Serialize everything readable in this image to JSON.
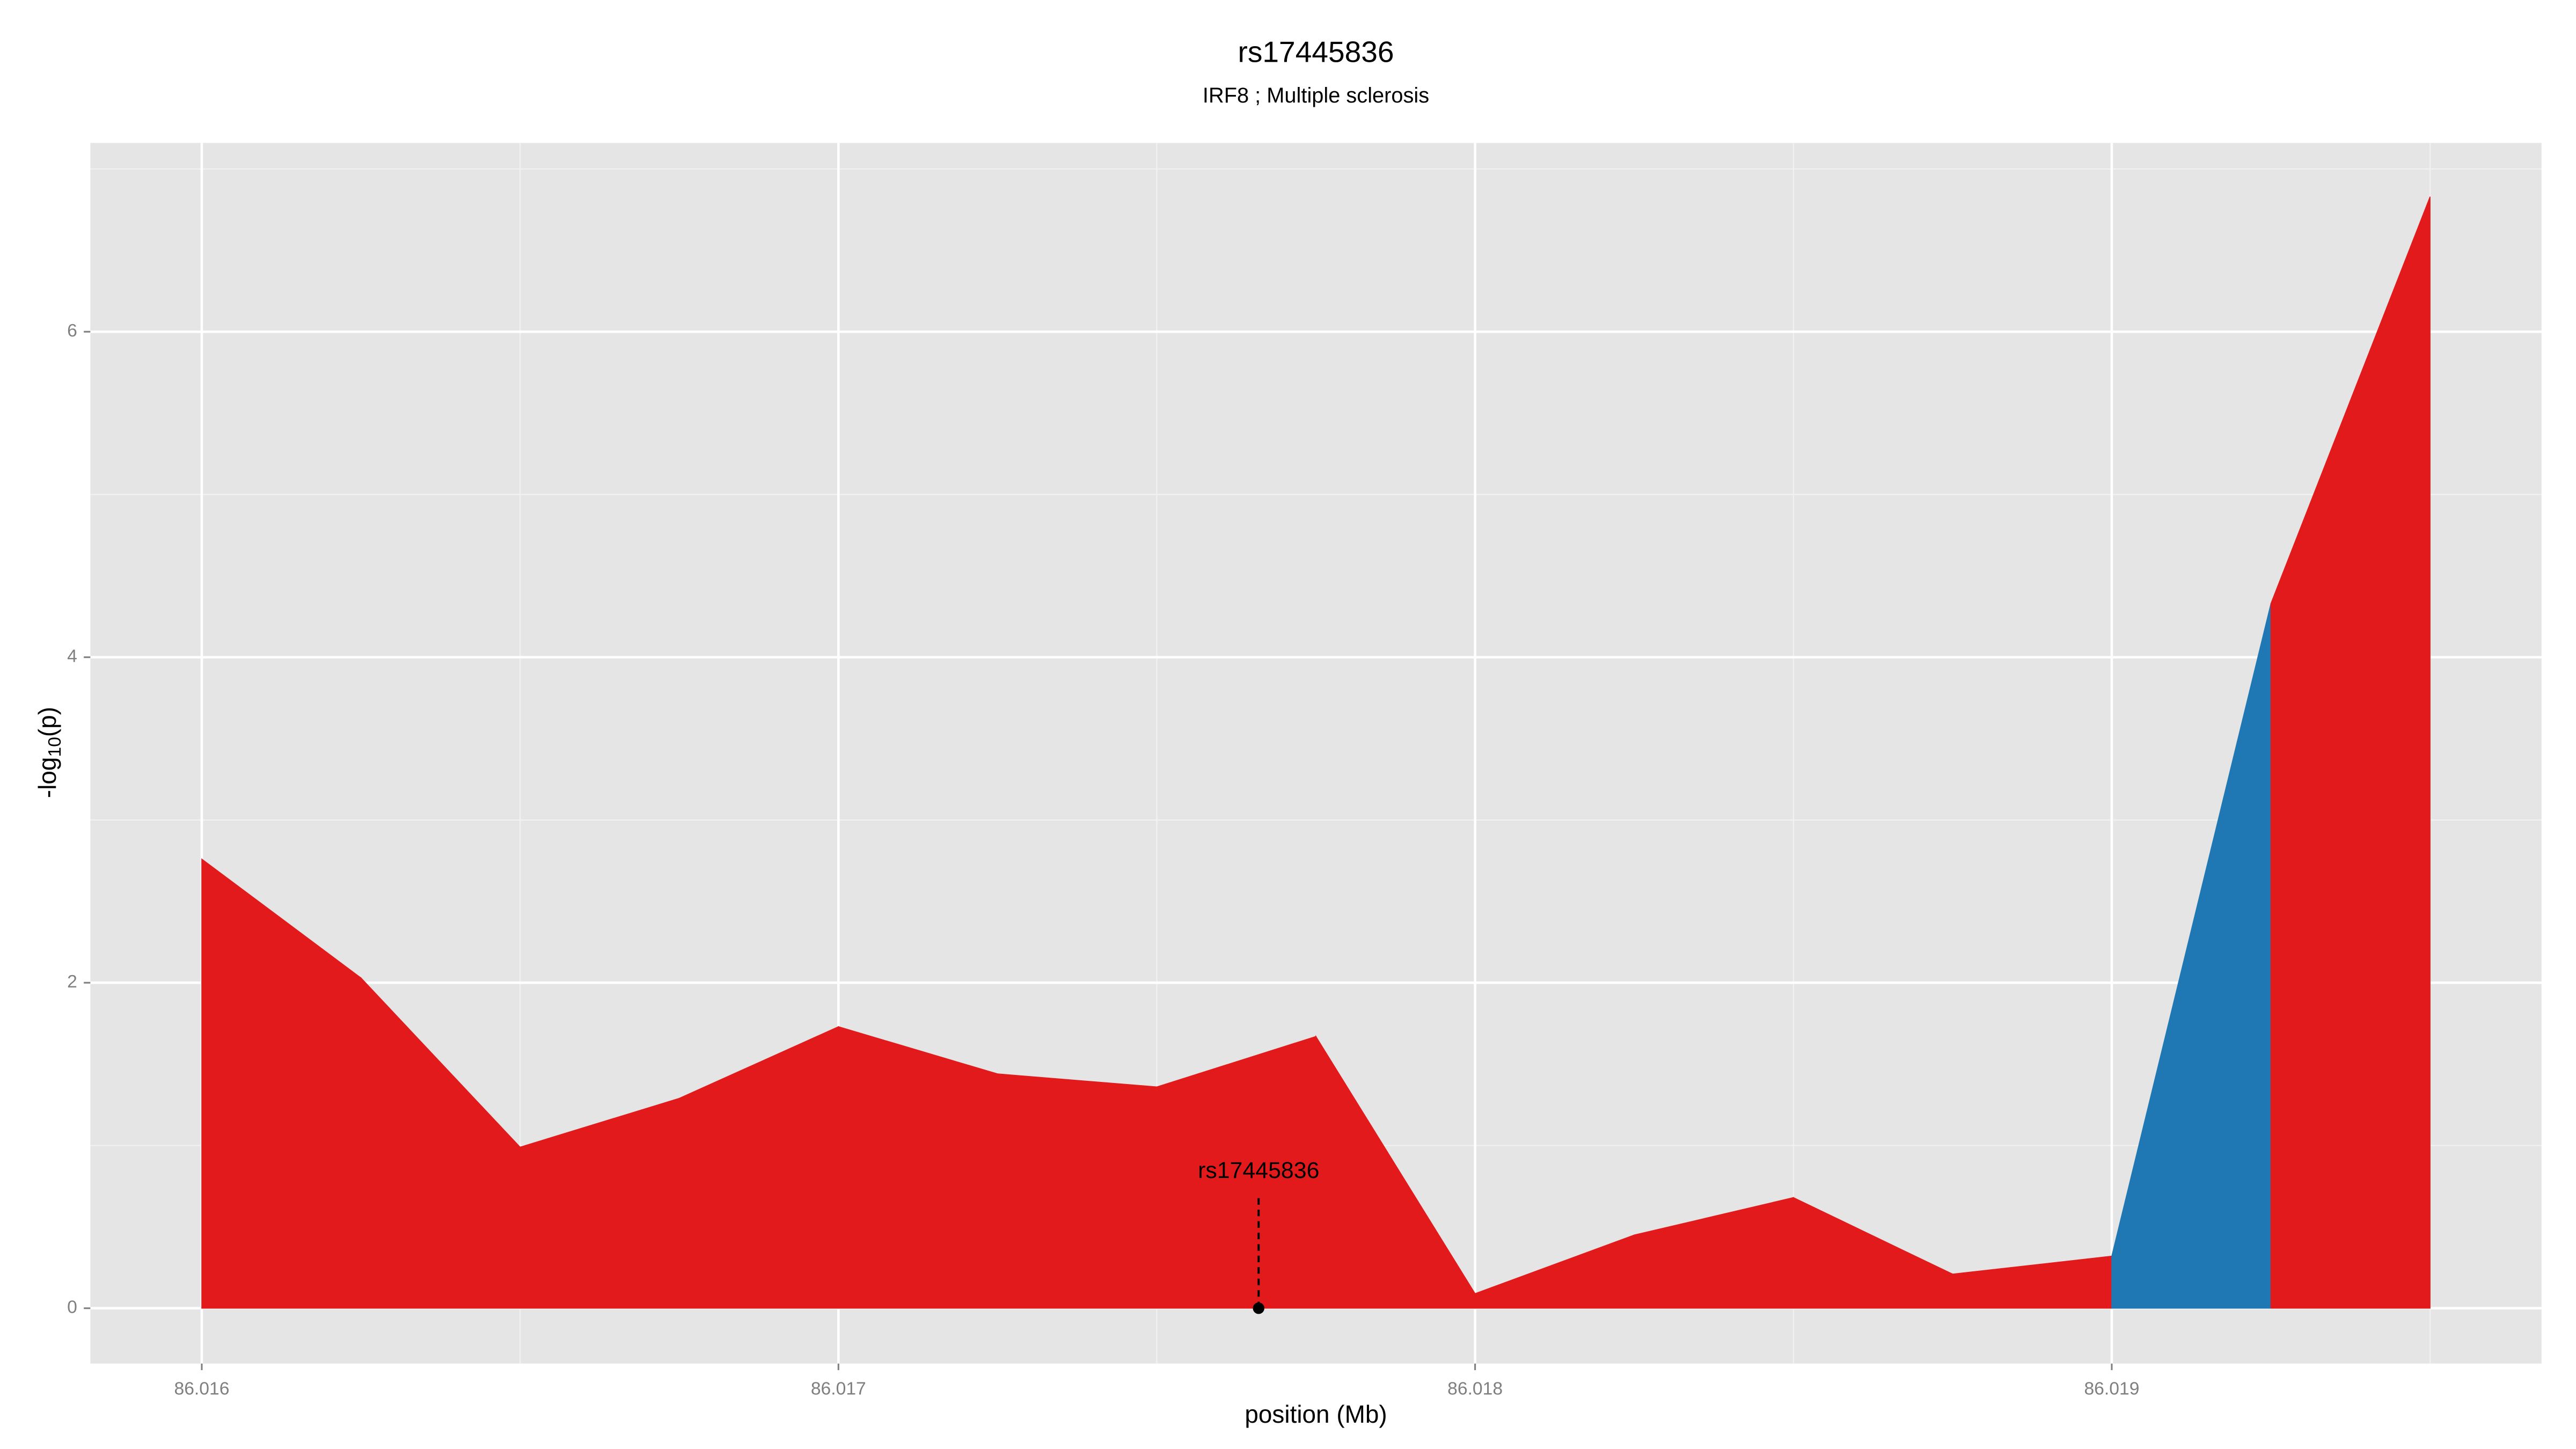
{
  "chart_data": {
    "type": "area",
    "title": "rs17445836",
    "subtitle": "IRF8 ; Multiple sclerosis",
    "xlabel": "position (Mb)",
    "ylabel": [
      "-log",
      "10",
      "(p)"
    ],
    "x": [
      86.016,
      86.01625,
      86.0165,
      86.01675,
      86.017,
      86.01725,
      86.0175,
      86.01775,
      86.018,
      86.01825,
      86.0185,
      86.01875,
      86.019,
      86.01925,
      86.0195
    ],
    "values": [
      2.76,
      2.03,
      0.99,
      1.29,
      1.73,
      1.44,
      1.36,
      1.67,
      0.09,
      0.45,
      0.68,
      0.21,
      0.32,
      4.33,
      6.83
    ],
    "segment_colors": [
      "#e31a1c",
      "#e31a1c",
      "#e31a1c",
      "#e31a1c",
      "#e31a1c",
      "#e31a1c",
      "#e31a1c",
      "#e31a1c",
      "#e31a1c",
      "#e31a1c",
      "#e31a1c",
      "#e31a1c",
      "#1f78b4",
      "#e31a1c"
    ],
    "xlim": [
      86.015825,
      86.019675
    ],
    "ylim": [
      -0.34,
      7.16
    ],
    "xticks": [
      86.016,
      86.017,
      86.018,
      86.019
    ],
    "xminor": [
      86.0165,
      86.0175,
      86.0185,
      86.0195
    ],
    "yticks": [
      0,
      2,
      4,
      6
    ],
    "yminor": [
      1,
      3,
      5,
      7
    ],
    "grid": true,
    "annotation": {
      "text": "rs17445836",
      "x": 86.01766,
      "y": 0
    }
  }
}
